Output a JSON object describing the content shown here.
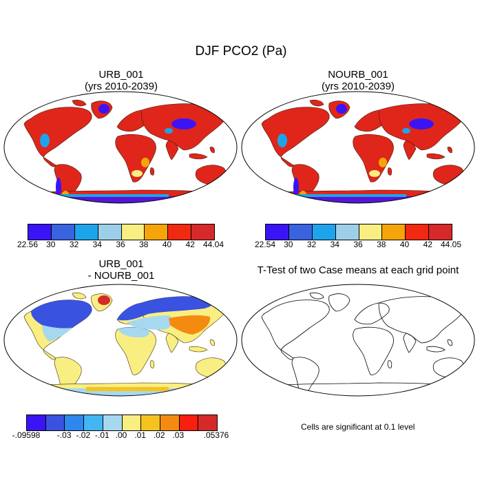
{
  "title": "DJF PCO2 (Pa)",
  "panels": [
    {
      "id": "urb",
      "title_line1": "URB_001",
      "title_line2": "(yrs 2010-2039)"
    },
    {
      "id": "nourb",
      "title_line1": "NOURB_001",
      "title_line2": "(yrs 2010-2039)"
    },
    {
      "id": "diff",
      "title_line1": "URB_001",
      "title_line2": "- NOURB_001"
    },
    {
      "id": "ttest",
      "title_line1": "T-Test of two Case means at each grid point",
      "title_line2": ""
    }
  ],
  "colorbars": {
    "abs_colors": [
      "#3b14f5",
      "#3a63e0",
      "#1ea4ea",
      "#9ecfe8",
      "#f9ee82",
      "#f5a50a",
      "#f02a10",
      "#d62a2a"
    ],
    "urb_ticks": [
      "22.56",
      "30",
      "32",
      "34",
      "36",
      "38",
      "40",
      "42",
      "44.04"
    ],
    "nourb_ticks": [
      "22.54",
      "30",
      "32",
      "34",
      "36",
      "38",
      "40",
      "42",
      "44.05"
    ],
    "diff_colors": [
      "#3b14f5",
      "#3a52e0",
      "#2e86ef",
      "#42b6f2",
      "#a6d8f0",
      "#f9ee82",
      "#f6c31e",
      "#f48b10",
      "#f81e10",
      "#d62a2a"
    ],
    "diff_ticks": [
      "-.09598",
      "-.03",
      "-.02",
      "-.01",
      ".00",
      ".01",
      ".02",
      ".03",
      ".05376"
    ]
  },
  "significance_note": "Cells are significant at 0.1 level"
}
